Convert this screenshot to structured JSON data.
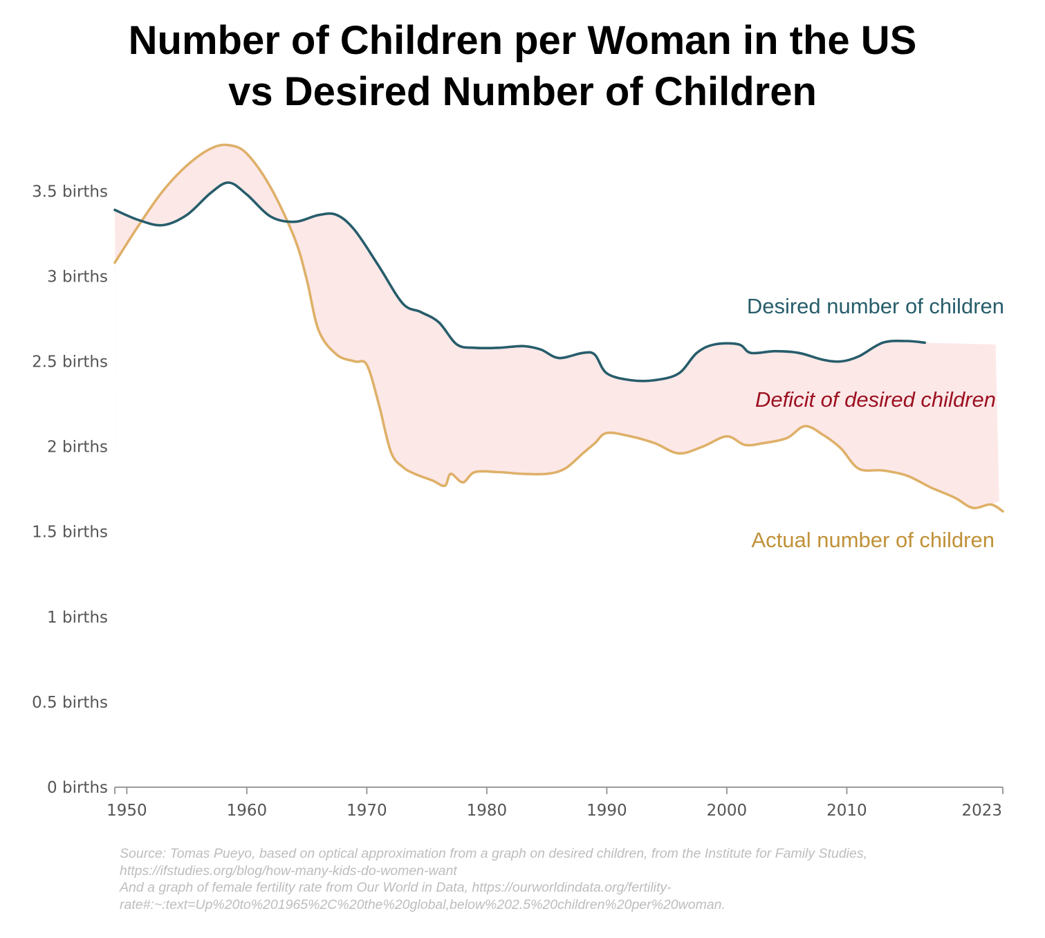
{
  "title_lines": [
    "Number of Children per Woman in the US",
    "vs Desired Number of Children"
  ],
  "source_lines": [
    "Source: Tomas Pueyo, based on optical approximation from a graph on desired children, from the Institute for Family Studies,",
    "https://ifstudies.org/blog/how-many-kids-do-women-want",
    "And a graph of female fertility rate from Our World in Data, https://ourworldindata.org/fertility-",
    "rate#:~:text=Up%20to%201965%2C%20the%20global,below%202.5%20children%20per%20woman."
  ],
  "colors": {
    "desired": "#275d6b",
    "actual": "#deb068",
    "actual_label": "#c09138",
    "deficit_fill": "#fde8e8",
    "deficit_label": "#9b1020",
    "axis": "#9a9a9a",
    "tick_text": "#555555"
  },
  "chart_data": {
    "type": "line",
    "title": "Number of Children per Woman in the US vs Desired Number of Children",
    "xlabel": "",
    "ylabel": "",
    "xlim": [
      1949,
      2023
    ],
    "ylim": [
      0,
      3.9
    ],
    "grid": false,
    "legend": "inline labels at right",
    "x_ticks": [
      "1950",
      "1960",
      "1970",
      "1980",
      "1990",
      "2000",
      "2010",
      "2023"
    ],
    "x_tick_values": [
      1950,
      1960,
      1970,
      1980,
      1990,
      2000,
      2010,
      2023
    ],
    "y_ticks": [
      "0 births",
      "0.5 births",
      "1 births",
      "1.5 births",
      "2 births",
      "2.5 births",
      "3 births",
      "3.5 births"
    ],
    "y_tick_values": [
      0,
      0.5,
      1,
      1.5,
      2,
      2.5,
      3,
      3.5
    ],
    "series": [
      {
        "name": "Desired number of children",
        "color": "#275d6b",
        "x": [
          1949,
          1951,
          1953,
          1955,
          1957,
          1958.5,
          1960,
          1962,
          1964,
          1966,
          1967.5,
          1969,
          1971,
          1973,
          1974.5,
          1976,
          1977.5,
          1979,
          1981,
          1983,
          1984.5,
          1986,
          1988,
          1989,
          1990,
          1992,
          1994,
          1996,
          1997.5,
          1999,
          2001,
          2002,
          2004,
          2006,
          2008,
          2009.5,
          2011,
          2013,
          2015,
          2016.5
        ],
        "y": [
          3.39,
          3.33,
          3.3,
          3.36,
          3.49,
          3.55,
          3.48,
          3.35,
          3.32,
          3.36,
          3.36,
          3.27,
          3.06,
          2.84,
          2.79,
          2.73,
          2.6,
          2.58,
          2.58,
          2.59,
          2.57,
          2.52,
          2.55,
          2.54,
          2.43,
          2.39,
          2.39,
          2.43,
          2.55,
          2.6,
          2.6,
          2.55,
          2.56,
          2.55,
          2.51,
          2.5,
          2.53,
          2.61,
          2.62,
          2.61
        ]
      },
      {
        "name": "Actual number of children",
        "color": "#deb068",
        "x": [
          1949,
          1951,
          1953,
          1955,
          1957,
          1958.5,
          1960,
          1962,
          1964,
          1965,
          1966,
          1967.5,
          1969,
          1970,
          1971,
          1972,
          1973,
          1974,
          1975.5,
          1976.5,
          1977,
          1978,
          1979,
          1981,
          1983,
          1985,
          1986.5,
          1988,
          1989,
          1990,
          1992,
          1994,
          1996,
          1998,
          2000,
          2001.5,
          2003,
          2005,
          2006.5,
          2008,
          2009.5,
          2011,
          2013,
          2015,
          2017,
          2019,
          2020.5,
          2022,
          2023
        ],
        "y": [
          3.08,
          3.3,
          3.5,
          3.65,
          3.75,
          3.77,
          3.72,
          3.52,
          3.22,
          2.98,
          2.68,
          2.54,
          2.5,
          2.48,
          2.25,
          1.97,
          1.88,
          1.84,
          1.8,
          1.77,
          1.84,
          1.79,
          1.85,
          1.85,
          1.84,
          1.84,
          1.87,
          1.96,
          2.02,
          2.08,
          2.06,
          2.02,
          1.96,
          2.0,
          2.06,
          2.01,
          2.02,
          2.05,
          2.12,
          2.07,
          1.99,
          1.87,
          1.86,
          1.83,
          1.76,
          1.7,
          1.64,
          1.66,
          1.62
        ]
      }
    ],
    "annotations": [
      "Desired number of children",
      "Deficit of desired children",
      "Actual number of children"
    ]
  }
}
